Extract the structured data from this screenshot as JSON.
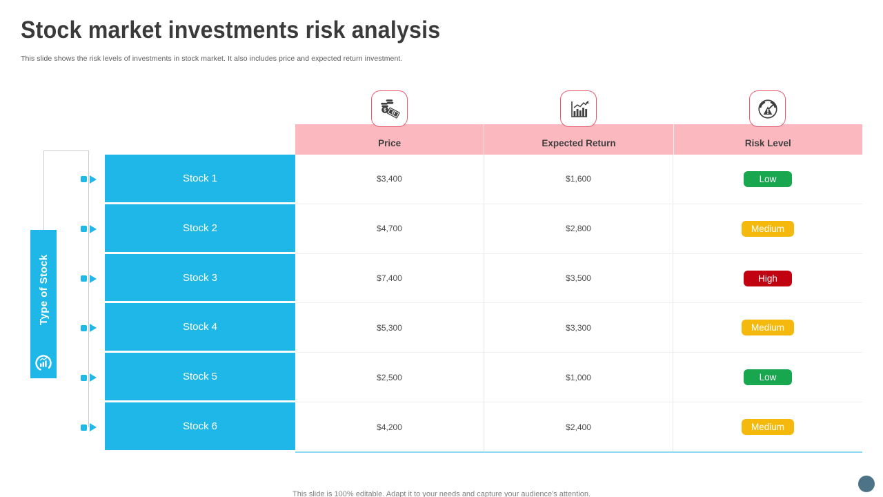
{
  "slide": {
    "title": "Stock market investments risk analysis",
    "subtitle": "This slide shows the risk levels of investments in stock market. It also includes price and expected return investment.",
    "footer": "This slide is 100% editable. Adapt it to your needs and capture your audience's attention."
  },
  "left_panel": {
    "label": "Type of Stock",
    "icon": "chart-badge-icon"
  },
  "table": {
    "columns": [
      {
        "label": "Price",
        "icon": "money-icon"
      },
      {
        "label": "Expected Return",
        "icon": "growth-chart-icon"
      },
      {
        "label": "Risk Level",
        "icon": "risk-gauge-icon"
      }
    ],
    "rows": [
      {
        "stock": "Stock 1",
        "price": "$3,400",
        "expected_return": "$1,600",
        "risk": "Low"
      },
      {
        "stock": "Stock 2",
        "price": "$4,700",
        "expected_return": "$2,800",
        "risk": "Medium"
      },
      {
        "stock": "Stock 3",
        "price": "$7,400",
        "expected_return": "$3,500",
        "risk": "High"
      },
      {
        "stock": "Stock 4",
        "price": "$5,300",
        "expected_return": "$3,300",
        "risk": "Medium"
      },
      {
        "stock": "Stock 5",
        "price": "$2,500",
        "expected_return": "$1,000",
        "risk": "Low"
      },
      {
        "stock": "Stock 6",
        "price": "$4,200",
        "expected_return": "$2,400",
        "risk": "Medium"
      }
    ]
  },
  "colors": {
    "accent_blue": "#1fb6e8",
    "header_pink": "#fbb8bf",
    "icon_border_red": "#ea5a6e",
    "risk_low": "#18a64f",
    "risk_medium": "#f5b90d",
    "risk_high": "#c00211",
    "footer_circle": "#4d7486"
  }
}
